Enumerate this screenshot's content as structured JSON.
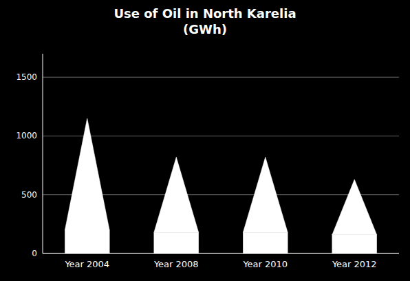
{
  "chart_data": {
    "type": "triangle",
    "title": "Use of Oil in North Karelia\n(GWh)",
    "categories": [
      "Year 2004",
      "Year 2008",
      "Year 2010",
      "Year 2012"
    ],
    "values": [
      1150,
      820,
      820,
      630
    ],
    "base_values": [
      200,
      180,
      180,
      160
    ],
    "color": "#ffffff",
    "ylim": [
      0,
      1700
    ],
    "yticks": [
      0,
      500,
      1000,
      1500
    ],
    "grid": true
  }
}
